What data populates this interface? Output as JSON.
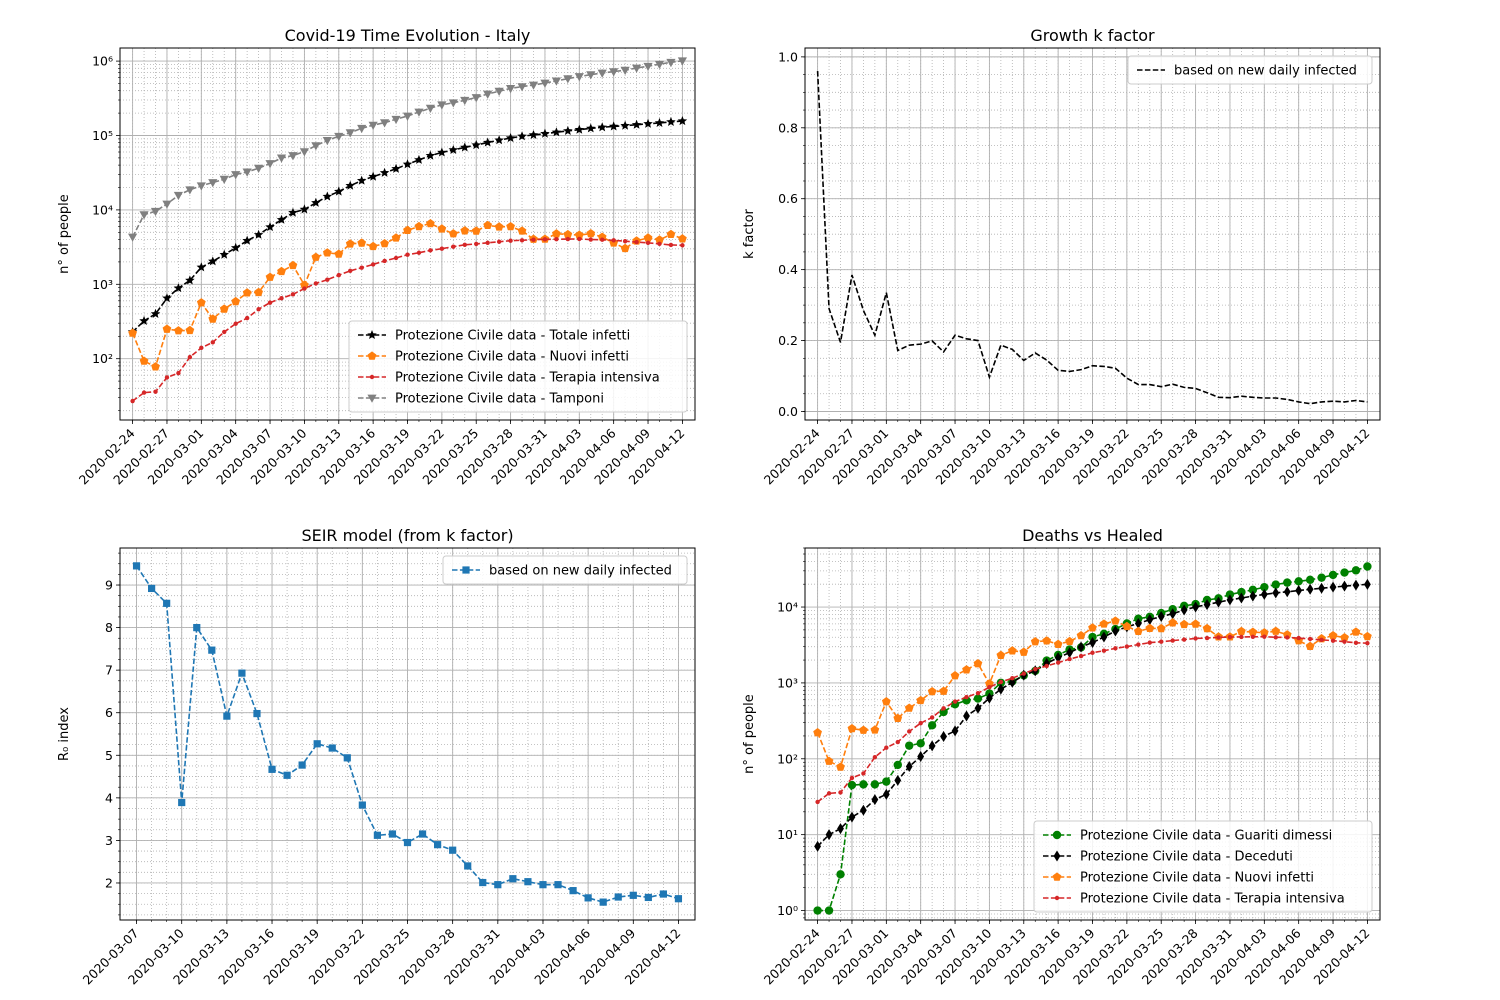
{
  "chart_data": [
    {
      "id": "p1",
      "type": "line",
      "title": "Covid-19 Time Evolution - Italy",
      "ylabel": "n° of people",
      "yscale": "log",
      "ylim": [
        15,
        1500000
      ],
      "y_ticks": [
        {
          "v": 100,
          "label": "10²"
        },
        {
          "v": 1000,
          "label": "10³"
        },
        {
          "v": 10000,
          "label": "10⁴"
        },
        {
          "v": 100000,
          "label": "10⁵"
        },
        {
          "v": 1000000,
          "label": "10⁶"
        }
      ],
      "start": "2020-02-24",
      "days": 48,
      "legend": "lower-right",
      "series": [
        {
          "name": "Protezione Civile data - Totale infetti",
          "color": "#000000",
          "marker": "star",
          "values": [
            229,
            322,
            400,
            650,
            888,
            1128,
            1694,
            2036,
            2502,
            3089,
            3858,
            4636,
            5883,
            7375,
            9172,
            10149,
            12462,
            15113,
            17660,
            21157,
            24747,
            27980,
            31506,
            35713,
            41035,
            47021,
            53578,
            59138,
            63927,
            69176,
            74386,
            80539,
            86498,
            92472,
            97689,
            101739,
            105792,
            110574,
            115242,
            119827,
            124632,
            128948,
            132547,
            135586,
            139422,
            143626,
            147577,
            152271,
            156363
          ]
        },
        {
          "name": "Protezione Civile data - Nuovi infetti",
          "color": "#ff7f0e",
          "marker": "pentagon",
          "values": [
            221,
            93,
            78,
            250,
            238,
            240,
            566,
            342,
            466,
            587,
            769,
            778,
            1247,
            1492,
            1797,
            977,
            2313,
            2651,
            2547,
            3497,
            3590,
            3233,
            3526,
            4207,
            5322,
            5986,
            6557,
            5560,
            4789,
            5249,
            5210,
            6203,
            5909,
            5974,
            5217,
            4050,
            4053,
            4782,
            4668,
            4585,
            4805,
            4316,
            3599,
            3039,
            3836,
            4204,
            3951,
            4694,
            4092
          ]
        },
        {
          "name": "Protezione Civile data - Terapia intensiva",
          "color": "#d62728",
          "marker": "dot",
          "values": [
            27,
            35,
            36,
            56,
            64,
            105,
            140,
            166,
            229,
            295,
            351,
            462,
            567,
            650,
            733,
            877,
            1028,
            1153,
            1328,
            1518,
            1672,
            1851,
            2060,
            2257,
            2498,
            2655,
            2857,
            3009,
            3204,
            3396,
            3489,
            3612,
            3732,
            3856,
            3906,
            3981,
            4023,
            4035,
            4053,
            4068,
            3994,
            3977,
            3898,
            3792,
            3693,
            3605,
            3497,
            3381,
            3343
          ]
        },
        {
          "name": "Protezione Civile data - Tamponi",
          "color": "#808080",
          "marker": "triangle-down",
          "values": [
            4324,
            8623,
            9587,
            12014,
            15695,
            18661,
            21127,
            23345,
            25856,
            29837,
            32362,
            36359,
            42062,
            49937,
            53826,
            60761,
            73154,
            86011,
            97488,
            109170,
            124899,
            137962,
            148657,
            165541,
            182777,
            206886,
            233222,
            258402,
            275468,
            296964,
            324445,
            361060,
            394079,
            429526,
            454030,
            477359,
            506968,
            541423,
            581232,
            619849,
            657224,
            691461,
            721732,
            755445,
            807125,
            853369,
            906864,
            963473,
            1010193
          ]
        }
      ]
    },
    {
      "id": "p2",
      "type": "line",
      "title": "Growth k factor",
      "ylabel": "k factor",
      "yscale": "linear",
      "ylim": [
        -0.024,
        1.025
      ],
      "y_ticks": [
        {
          "v": 0,
          "label": "0.0"
        },
        {
          "v": 0.2,
          "label": "0.2"
        },
        {
          "v": 0.4,
          "label": "0.4"
        },
        {
          "v": 0.6,
          "label": "0.6"
        },
        {
          "v": 0.8,
          "label": "0.8"
        },
        {
          "v": 1.0,
          "label": "1.0"
        }
      ],
      "start": "2020-02-24",
      "days": 48,
      "legend": "upper-right",
      "series": [
        {
          "name": "based on new daily infected",
          "color": "#000000",
          "marker": "none",
          "values": [
            0.96,
            0.29,
            0.195,
            0.385,
            0.285,
            0.215,
            0.335,
            0.172,
            0.187,
            0.19,
            0.199,
            0.168,
            0.215,
            0.205,
            0.2,
            0.097,
            0.187,
            0.175,
            0.144,
            0.165,
            0.145,
            0.116,
            0.113,
            0.118,
            0.129,
            0.127,
            0.122,
            0.094,
            0.076,
            0.076,
            0.07,
            0.077,
            0.068,
            0.065,
            0.053,
            0.04,
            0.039,
            0.043,
            0.04,
            0.038,
            0.038,
            0.034,
            0.027,
            0.022,
            0.027,
            0.029,
            0.027,
            0.031,
            0.027
          ]
        }
      ]
    },
    {
      "id": "p3",
      "type": "line",
      "title": "SEIR model (from k factor)",
      "ylabel": "R₀ index",
      "yscale": "linear",
      "ylim": [
        1.13,
        9.87
      ],
      "y_ticks": [
        {
          "v": 2,
          "label": "2"
        },
        {
          "v": 3,
          "label": "3"
        },
        {
          "v": 4,
          "label": "4"
        },
        {
          "v": 5,
          "label": "5"
        },
        {
          "v": 6,
          "label": "6"
        },
        {
          "v": 7,
          "label": "7"
        },
        {
          "v": 8,
          "label": "8"
        },
        {
          "v": 9,
          "label": "9"
        }
      ],
      "start": "2020-03-07",
      "days": 36,
      "legend": "upper-right",
      "series": [
        {
          "name": "based on new daily infected",
          "color": "#1f77b4",
          "marker": "square",
          "values": [
            9.45,
            8.92,
            8.57,
            3.89,
            8.0,
            7.47,
            5.92,
            6.93,
            5.98,
            4.67,
            4.53,
            4.77,
            5.27,
            5.17,
            4.94,
            3.83,
            3.12,
            3.15,
            2.95,
            3.15,
            2.9,
            2.77,
            2.4,
            2.01,
            1.96,
            2.1,
            2.03,
            1.96,
            1.96,
            1.82,
            1.65,
            1.55,
            1.67,
            1.71,
            1.66,
            1.74,
            1.63
          ]
        }
      ]
    },
    {
      "id": "p4",
      "type": "line",
      "title": "Deaths vs Healed",
      "ylabel": "n° of people",
      "yscale": "log",
      "ylim": [
        0.75,
        60000
      ],
      "y_ticks": [
        {
          "v": 1,
          "label": "10⁰"
        },
        {
          "v": 10,
          "label": "10¹"
        },
        {
          "v": 100,
          "label": "10²"
        },
        {
          "v": 1000,
          "label": "10³"
        },
        {
          "v": 10000,
          "label": "10⁴"
        }
      ],
      "start": "2020-02-24",
      "days": 48,
      "legend": "lower-right",
      "series": [
        {
          "name": "Protezione Civile data - Guariti dimessi",
          "color": "#008000",
          "marker": "circle",
          "values": [
            1,
            1,
            3,
            45,
            46,
            46,
            50,
            83,
            149,
            160,
            276,
            414,
            523,
            589,
            622,
            724,
            1004,
            1045,
            1258,
            1439,
            1966,
            2335,
            2749,
            2941,
            4025,
            4440,
            5129,
            6072,
            7024,
            7432,
            8326,
            9362,
            10361,
            10950,
            12384,
            13030,
            14620,
            15729,
            16847,
            18278,
            19758,
            20996,
            21815,
            22837,
            24392,
            26491,
            28470,
            30455,
            34211
          ]
        },
        {
          "name": "Protezione Civile data - Deceduti",
          "color": "#000000",
          "marker": "diamond",
          "values": [
            7,
            10,
            12,
            17,
            21,
            29,
            34,
            52,
            79,
            107,
            148,
            197,
            233,
            366,
            463,
            631,
            827,
            1016,
            1266,
            1441,
            1809,
            2158,
            2503,
            2978,
            3405,
            4032,
            4825,
            5476,
            6077,
            6820,
            7503,
            8165,
            9134,
            10023,
            10779,
            11591,
            12428,
            13155,
            13915,
            14681,
            15362,
            15887,
            16523,
            17127,
            17669,
            18279,
            18849,
            19468,
            19899
          ]
        },
        {
          "name": "Protezione Civile data - Nuovi infetti",
          "color": "#ff7f0e",
          "marker": "pentagon",
          "values": [
            221,
            93,
            78,
            250,
            238,
            240,
            566,
            342,
            466,
            587,
            769,
            778,
            1247,
            1492,
            1797,
            977,
            2313,
            2651,
            2547,
            3497,
            3590,
            3233,
            3526,
            4207,
            5322,
            5986,
            6557,
            5560,
            4789,
            5249,
            5210,
            6203,
            5909,
            5974,
            5217,
            4050,
            4053,
            4782,
            4668,
            4585,
            4805,
            4316,
            3599,
            3039,
            3836,
            4204,
            3951,
            4694,
            4092
          ]
        },
        {
          "name": "Protezione Civile data - Terapia intensiva",
          "color": "#d62728",
          "marker": "dot",
          "values": [
            27,
            35,
            36,
            56,
            64,
            105,
            140,
            166,
            229,
            295,
            351,
            462,
            567,
            650,
            733,
            877,
            1028,
            1153,
            1328,
            1518,
            1672,
            1851,
            2060,
            2257,
            2498,
            2655,
            2857,
            3009,
            3204,
            3396,
            3489,
            3612,
            3732,
            3856,
            3906,
            3981,
            4023,
            4035,
            4053,
            4068,
            3994,
            3977,
            3898,
            3792,
            3693,
            3605,
            3497,
            3381,
            3343
          ]
        }
      ]
    }
  ]
}
